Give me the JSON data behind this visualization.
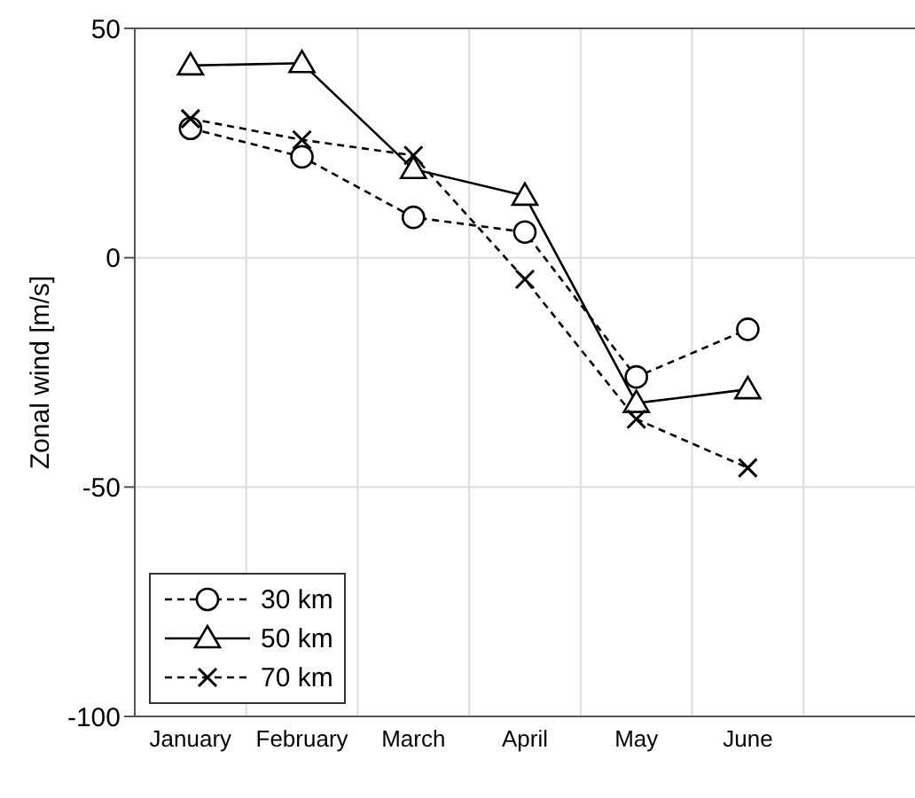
{
  "chart_data": {
    "type": "line",
    "ylabel": "Zonal wind [m/s]",
    "categories": [
      "January",
      "February",
      "March",
      "April",
      "May",
      "June",
      null
    ],
    "series": [
      {
        "name": "30 km",
        "color": "#000000",
        "marker": "circle",
        "line_style": "dashed",
        "values": [
          28.2,
          22,
          8.8,
          5.6,
          -26,
          -15.6,
          null
        ]
      },
      {
        "name": "50 km",
        "color": "#000000",
        "marker": "triangle",
        "line_style": "solid",
        "values": [
          41.9,
          42.4,
          19.3,
          13.5,
          -31.7,
          -28.7,
          null
        ]
      },
      {
        "name": "70 km",
        "color": "#000000",
        "marker": "cross",
        "line_style": "dashed",
        "values": [
          30.3,
          25.7,
          22.3,
          -4.7,
          -35.2,
          -45.8,
          null
        ]
      }
    ],
    "ylim": [
      -100,
      50
    ],
    "yticks": [
      -100,
      -50,
      0,
      50
    ],
    "grid": true,
    "legend": "bottom left"
  }
}
